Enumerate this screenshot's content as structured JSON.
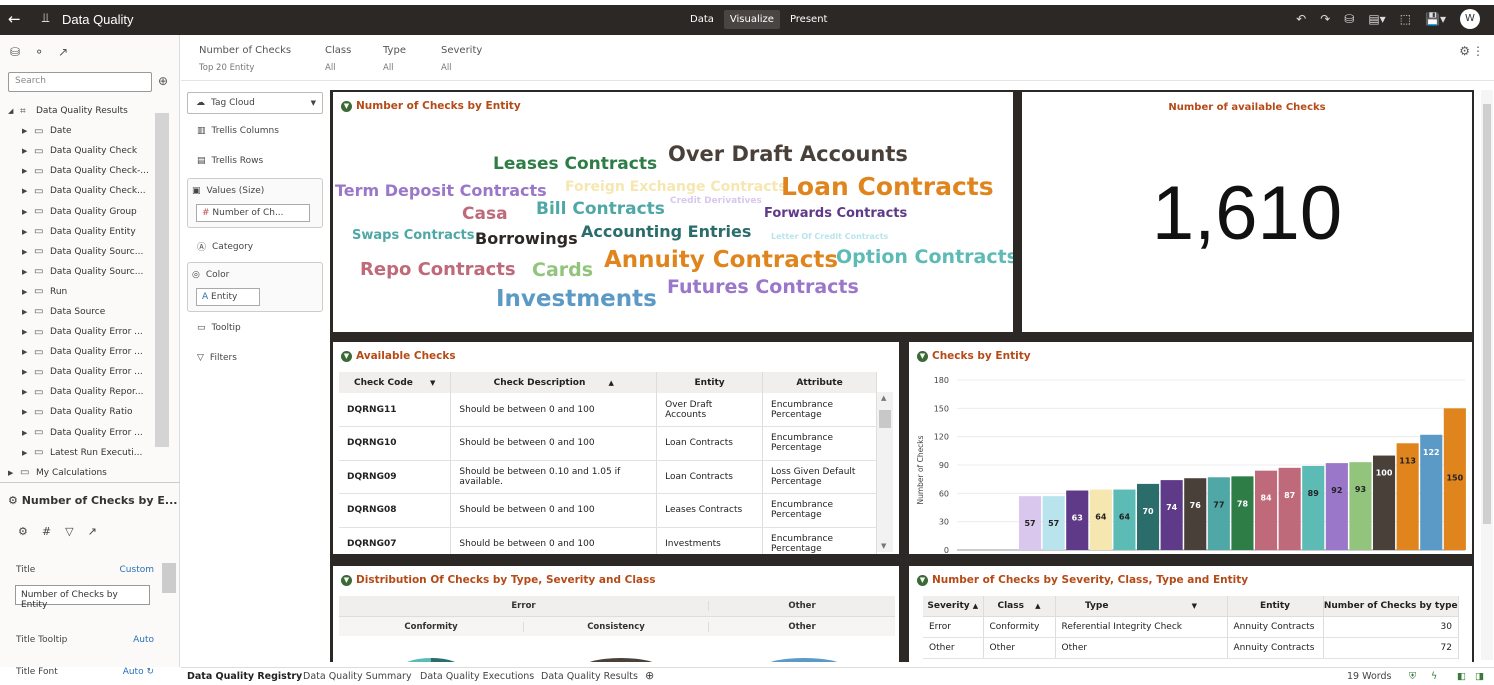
{
  "app": {
    "title": "Data Quality",
    "modes": [
      "Data",
      "Visualize",
      "Present"
    ],
    "active_mode": "Visualize",
    "user_initial": "W"
  },
  "left": {
    "search_placeholder": "Search",
    "tree": [
      {
        "label": "Data Quality Results",
        "expanded": true,
        "root": true
      },
      {
        "label": "Date"
      },
      {
        "label": "Data Quality Check"
      },
      {
        "label": "Data Quality Check-..."
      },
      {
        "label": "Data Quality Check..."
      },
      {
        "label": "Data Quality Group"
      },
      {
        "label": "Data Quality Entity"
      },
      {
        "label": "Data Quality Sourc..."
      },
      {
        "label": "Data Quality Sourc..."
      },
      {
        "label": "Run"
      },
      {
        "label": "Data Source"
      },
      {
        "label": "Data Quality Error ..."
      },
      {
        "label": "Data Quality Error ..."
      },
      {
        "label": "Data Quality Error ..."
      },
      {
        "label": "Data Quality Repor..."
      },
      {
        "label": "Data Quality Ratio"
      },
      {
        "label": "Data Quality Error ..."
      },
      {
        "label": "Latest Run Executi..."
      },
      {
        "label": "My Calculations",
        "root": true
      }
    ],
    "props_title": "Number of Checks by E...",
    "props": {
      "title_label": "Title",
      "title_value": "Custom",
      "title_text": "Number of Checks by Entity",
      "tooltip_label": "Title Tooltip",
      "tooltip_value": "Auto",
      "font_label": "Title Font",
      "font_value": "Auto"
    }
  },
  "filters": [
    {
      "label": "Number of Checks",
      "value": "Top 20 Entity"
    },
    {
      "label": "Class",
      "value": "All"
    },
    {
      "label": "Type",
      "value": "All"
    },
    {
      "label": "Severity",
      "value": "All"
    }
  ],
  "grammar": {
    "viz_type": "Tag Cloud",
    "trellis_columns": "Trellis Columns",
    "trellis_rows": "Trellis Rows",
    "values_label": "Values (Size)",
    "values_pill": "Number of Ch...",
    "category": "Category",
    "color": "Color",
    "color_pill": "Entity",
    "tooltip": "Tooltip",
    "filters": "Filters"
  },
  "tiles": {
    "cloud": {
      "title": "Number of Checks by Entity",
      "words": [
        {
          "text": "Over Draft Accounts",
          "color": "#4a403a",
          "size": 21
        },
        {
          "text": "Leases Contracts",
          "color": "#2e7d46",
          "size": 17
        },
        {
          "text": "Term Deposit Contracts",
          "color": "#9a77c8",
          "size": 16
        },
        {
          "text": "Foreign Exchange Contracts",
          "color": "#f6e7b0",
          "size": 14
        },
        {
          "text": "Loan Contracts",
          "color": "#e0851d",
          "size": 25
        },
        {
          "text": "Casa",
          "color": "#bf6a7a",
          "size": 17
        },
        {
          "text": "Bill Contracts",
          "color": "#4fa8a5",
          "size": 17
        },
        {
          "text": "Credit Derivatives",
          "color": "#d9c7ee",
          "size": 9
        },
        {
          "text": "Forwards Contracts",
          "color": "#5e3a88",
          "size": 13
        },
        {
          "text": "Swaps Contracts",
          "color": "#4fa8a5",
          "size": 13
        },
        {
          "text": "Borrowings",
          "color": "#2c2825",
          "size": 16
        },
        {
          "text": "Accounting Entries",
          "color": "#2a6d6b",
          "size": 16
        },
        {
          "text": "Letter Of Credit Contracts",
          "color": "#b9e4ee",
          "size": 8
        },
        {
          "text": "Repo Contracts",
          "color": "#bf6a7a",
          "size": 18
        },
        {
          "text": "Cards",
          "color": "#93c47d",
          "size": 19
        },
        {
          "text": "Annuity Contracts",
          "color": "#e0851d",
          "size": 23
        },
        {
          "text": "Option Contracts",
          "color": "#5dbbb5",
          "size": 19
        },
        {
          "text": "Futures Contracts",
          "color": "#9a77c8",
          "size": 19
        },
        {
          "text": "Investments",
          "color": "#5b9ac6",
          "size": 23
        }
      ]
    },
    "bignum": {
      "title": "Number of available Checks",
      "value": "1,610"
    },
    "available": {
      "title": "Available Checks",
      "headers": [
        "Check Code",
        "Check Description",
        "Entity",
        "Attribute"
      ],
      "rows": [
        [
          "DQRNG11",
          "Should be between 0 and 100",
          "Over Draft Accounts",
          "Encumbrance Percentage"
        ],
        [
          "DQRNG10",
          "Should be between 0 and 100",
          "Loan Contracts",
          "Encumbrance Percentage"
        ],
        [
          "DQRNG09",
          "Should be between 0.10 and 1.05 if available.",
          "Loan Contracts",
          "Loss Given Default Percentage"
        ],
        [
          "DQRNG08",
          "Should be between 0 and 100",
          "Leases Contracts",
          "Encumbrance Percentage"
        ],
        [
          "DQRNG07",
          "Should be between 0 and 100",
          "Investments",
          "Encumbrance Percentage"
        ]
      ]
    },
    "bars": {
      "title": "Checks by Entity"
    },
    "dist": {
      "title": "Distribution Of Checks by Type, Severity and Class",
      "groups": [
        "Error",
        "Other"
      ],
      "classes": [
        "Conformity",
        "Consistency",
        "Other"
      ]
    },
    "sev": {
      "title": "Number of Checks by Severity, Class, Type and Entity",
      "headers": [
        "Severity",
        "Class",
        "Type",
        "Entity",
        "Number of Checks by type"
      ],
      "rows": [
        [
          "Error",
          "Conformity",
          "Referential Integrity Check",
          "Annuity Contracts",
          "30"
        ],
        [
          "Other",
          "Other",
          "Other",
          "Annuity Contracts",
          "72"
        ]
      ]
    }
  },
  "chart_data": {
    "type": "bar",
    "title": "Checks by Entity",
    "xlabel": "",
    "ylabel": "Number of Checks",
    "ylim": [
      0,
      180
    ],
    "yticks": [
      0,
      30,
      60,
      90,
      120,
      150,
      180
    ],
    "values": [
      57,
      57,
      63,
      64,
      64,
      70,
      74,
      76,
      77,
      78,
      84,
      87,
      89,
      92,
      93,
      100,
      113,
      122,
      150
    ],
    "colors": [
      "#d9c7ee",
      "#b9e4ee",
      "#5e3a88",
      "#f6e7b0",
      "#5dbbb5",
      "#2a6d6b",
      "#5e3a88",
      "#4a403a",
      "#4fa8a5",
      "#2e7d46",
      "#bf6a7a",
      "#bf6a7a",
      "#5dbbb5",
      "#9a77c8",
      "#93c47d",
      "#4a403a",
      "#e0851d",
      "#5b9ac6",
      "#e0851d"
    ]
  },
  "bottom": {
    "tabs": [
      "Data Quality Registry",
      "Data Quality Summary",
      "Data Quality Executions",
      "Data Quality Results"
    ],
    "active": "Data Quality Registry",
    "words": "19 Words"
  }
}
